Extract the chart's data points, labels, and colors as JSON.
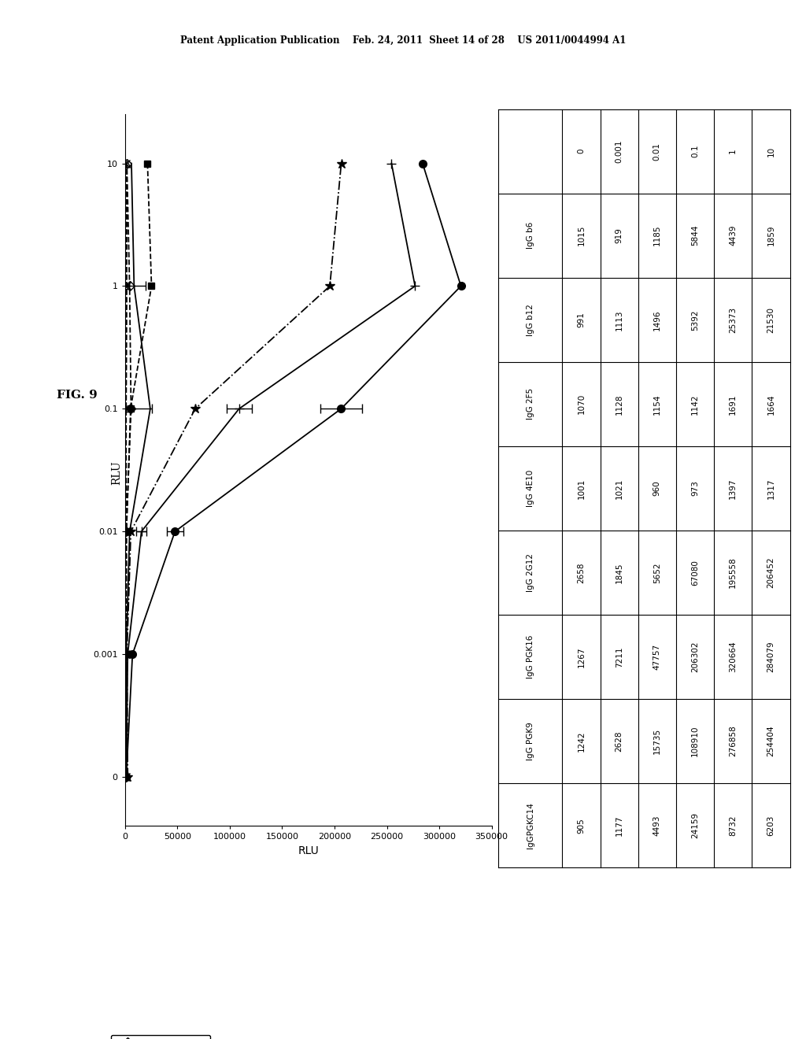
{
  "header": "Patent Application Publication    Feb. 24, 2011  Sheet 14 of 28    US 2011/0044994 A1",
  "fig_label": "FIG. 9",
  "xlabel": "RLU",
  "ylabel_conc": "",
  "y_labels": [
    "0",
    "0.001",
    "0.01",
    "0.1",
    "1",
    "10"
  ],
  "xlim": [
    0,
    350000
  ],
  "xticks": [
    0,
    50000,
    100000,
    150000,
    200000,
    250000,
    300000,
    350000
  ],
  "xtick_labels": [
    "0",
    "50000",
    "100000",
    "150000",
    "200000",
    "250000",
    "300000",
    "350000"
  ],
  "series": [
    {
      "name": "IgG b6",
      "marker": "D",
      "linestyle": "--",
      "fillstyle": "none",
      "values": [
        1015,
        919,
        1185,
        5844,
        4439,
        1859
      ],
      "xerr": [
        null,
        null,
        null,
        20000,
        15000,
        null
      ]
    },
    {
      "name": "IgG b12",
      "marker": "s",
      "linestyle": "--",
      "fillstyle": "full",
      "values": [
        991,
        1113,
        1496,
        5392,
        25373,
        21530
      ],
      "xerr": [
        null,
        null,
        null,
        null,
        null,
        null
      ]
    },
    {
      "name": "IgG 2F5",
      "marker": "^",
      "linestyle": "--",
      "fillstyle": "none",
      "values": [
        1070,
        1128,
        1154,
        1142,
        1691,
        1664
      ],
      "xerr": [
        null,
        null,
        null,
        null,
        null,
        null
      ]
    },
    {
      "name": "IgG 4E10",
      "marker": "x",
      "linestyle": "--",
      "fillstyle": "full",
      "values": [
        1001,
        1021,
        960,
        973,
        1397,
        1317
      ],
      "xerr": [
        null,
        null,
        null,
        null,
        null,
        null
      ]
    },
    {
      "name": "IgG 2G12",
      "marker": "*",
      "linestyle": "-.",
      "fillstyle": "full",
      "values": [
        2658,
        1845,
        5652,
        67080,
        195558,
        206452
      ],
      "xerr": [
        null,
        null,
        null,
        null,
        null,
        null
      ]
    },
    {
      "name": "IgG PGK16",
      "marker": "o",
      "linestyle": "-",
      "fillstyle": "full",
      "values": [
        1267,
        7211,
        47757,
        206302,
        320664,
        284079
      ],
      "xerr": [
        null,
        null,
        8000,
        20000,
        null,
        null
      ]
    },
    {
      "name": "IgG PGK9",
      "marker": "+",
      "linestyle": "-",
      "fillstyle": "full",
      "values": [
        1242,
        2628,
        15735,
        108910,
        276858,
        254404
      ],
      "xerr": [
        null,
        null,
        5000,
        12000,
        null,
        null
      ]
    },
    {
      "name": "IgGPGKC14",
      "marker": "None",
      "linestyle": "-",
      "fillstyle": "none",
      "values": [
        905,
        1177,
        4493,
        24159,
        8732,
        6203
      ],
      "xerr": [
        null,
        null,
        null,
        null,
        null,
        null
      ]
    }
  ],
  "table_col_header": [
    "",
    "0",
    "0.001",
    "0.01",
    "0.1",
    "1",
    "10"
  ],
  "table_rows": [
    [
      "IgG b6",
      "1015",
      "919",
      "1185",
      "5844",
      "4439",
      "1859"
    ],
    [
      "IgG b12",
      "991",
      "1113",
      "1496",
      "5392",
      "25373",
      "21530"
    ],
    [
      "IgG 2F5",
      "1070",
      "1128",
      "1154",
      "1142",
      "1691",
      "1664"
    ],
    [
      "IgG 4E10",
      "1001",
      "1021",
      "960",
      "973",
      "1397",
      "1317"
    ],
    [
      "IgG 2G12",
      "2658",
      "1845",
      "5652",
      "67080",
      "195558",
      "206452"
    ],
    [
      "IgG PGK16",
      "1267",
      "7211",
      "47757",
      "206302",
      "320664",
      "284079"
    ],
    [
      "IgG PGK9",
      "1242",
      "2628",
      "15735",
      "108910",
      "276858",
      "254404"
    ],
    [
      "IgGPGKC14",
      "905",
      "1177",
      "4493",
      "24159",
      "8732",
      "6203"
    ]
  ],
  "legend_entries": [
    {
      "symbol": "◇-",
      "name": "IgG b6"
    },
    {
      "symbol": "■-",
      "name": "IgG b12"
    },
    {
      "symbol": "△-",
      "name": "IgG 2F5"
    },
    {
      "symbol": "×-",
      "name": "IgG 4E10"
    },
    {
      "symbol": "∗-",
      "name": "IgG 2G12"
    },
    {
      "symbol": "●-",
      "name": "IgG PGK16"
    },
    {
      "symbol": "+-",
      "name": "IgG PGK9"
    },
    {
      "symbol": "—",
      "name": "IgGPGKC14"
    }
  ]
}
